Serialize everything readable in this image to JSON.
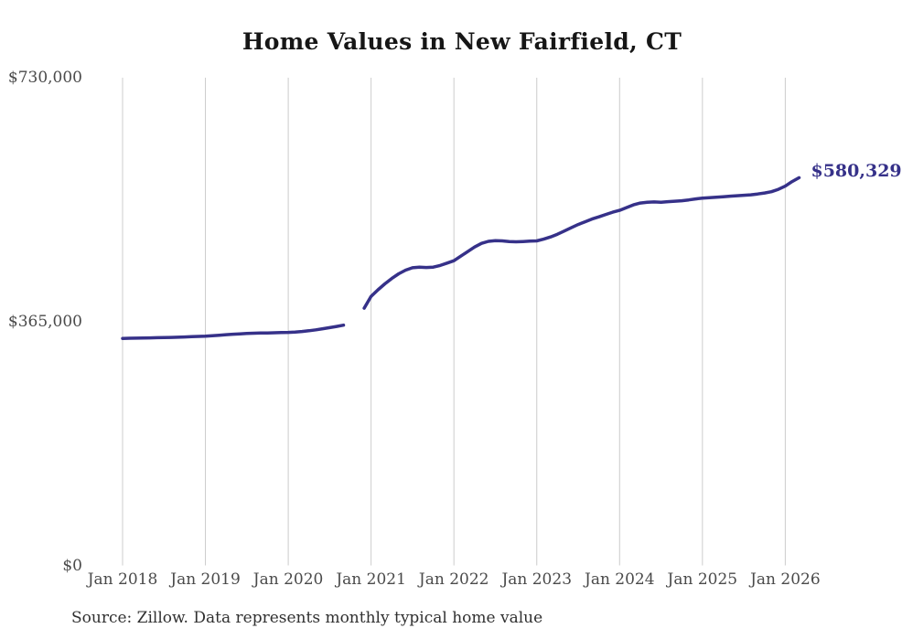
{
  "chart": {
    "title": "Home Values in New Fairfield, CT",
    "end_label": "$580,329",
    "source": "Source: Zillow. Data represents monthly typical home value",
    "line_color": "#363189",
    "grid_color": "#cccccc",
    "tick_color": "#4a4a4a"
  },
  "chart_data": {
    "type": "line",
    "title": "Home Values in New Fairfield, CT",
    "ylabel": "",
    "xlabel": "",
    "ylim": [
      0,
      730000
    ],
    "grid": "vertical-only",
    "legend": "none",
    "latest_value": 580329,
    "latest_value_label": "$580,329",
    "data_gap_months": [
      "2020-10",
      "2020-11"
    ],
    "source": "Source: Zillow. Data represents monthly typical home value",
    "y_ticks": [
      {
        "label": "$0",
        "value": 0
      },
      {
        "label": "$365,000",
        "value": 365000
      },
      {
        "label": "$730,000",
        "value": 730000
      }
    ],
    "x_ticks": [
      {
        "label": "Jan 2018",
        "month_index": 0
      },
      {
        "label": "Jan 2019",
        "month_index": 12
      },
      {
        "label": "Jan 2020",
        "month_index": 24
      },
      {
        "label": "Jan 2021",
        "month_index": 36
      },
      {
        "label": "Jan 2022",
        "month_index": 48
      },
      {
        "label": "Jan 2023",
        "month_index": 60
      },
      {
        "label": "Jan 2024",
        "month_index": 72
      },
      {
        "label": "Jan 2025",
        "month_index": 84
      },
      {
        "label": "Jan 2026",
        "month_index": 96
      }
    ],
    "x": [
      "2018-01",
      "2018-02",
      "2018-03",
      "2018-04",
      "2018-05",
      "2018-06",
      "2018-07",
      "2018-08",
      "2018-09",
      "2018-10",
      "2018-11",
      "2018-12",
      "2019-01",
      "2019-02",
      "2019-03",
      "2019-04",
      "2019-05",
      "2019-06",
      "2019-07",
      "2019-08",
      "2019-09",
      "2019-10",
      "2019-11",
      "2019-12",
      "2020-01",
      "2020-02",
      "2020-03",
      "2020-04",
      "2020-05",
      "2020-06",
      "2020-07",
      "2020-08",
      "2020-09",
      "2020-10",
      "2020-11",
      "2020-12",
      "2021-01",
      "2021-02",
      "2021-03",
      "2021-04",
      "2021-05",
      "2021-06",
      "2021-07",
      "2021-08",
      "2021-09",
      "2021-10",
      "2021-11",
      "2021-12",
      "2022-01",
      "2022-02",
      "2022-03",
      "2022-04",
      "2022-05",
      "2022-06",
      "2022-07",
      "2022-08",
      "2022-09",
      "2022-10",
      "2022-11",
      "2022-12",
      "2023-01",
      "2023-02",
      "2023-03",
      "2023-04",
      "2023-05",
      "2023-06",
      "2023-07",
      "2023-08",
      "2023-09",
      "2023-10",
      "2023-11",
      "2023-12",
      "2024-01",
      "2024-02",
      "2024-03",
      "2024-04",
      "2024-05",
      "2024-06",
      "2024-07",
      "2024-08",
      "2024-09",
      "2024-10",
      "2024-11",
      "2024-12",
      "2025-01",
      "2025-02",
      "2025-03",
      "2025-04",
      "2025-05",
      "2025-06",
      "2025-07",
      "2025-08",
      "2025-09",
      "2025-10",
      "2025-11",
      "2025-12",
      "2026-01",
      "2026-02",
      "2026-03"
    ],
    "values": [
      339700,
      340000,
      340200,
      340400,
      340600,
      340800,
      341000,
      341300,
      341600,
      342000,
      342400,
      342800,
      343200,
      343900,
      344600,
      345300,
      346000,
      346600,
      347100,
      347500,
      347800,
      348000,
      348200,
      348500,
      348800,
      349300,
      350100,
      351200,
      352600,
      354200,
      355900,
      357700,
      359600,
      null,
      null,
      385000,
      402500,
      412500,
      421500,
      429500,
      436500,
      442000,
      445500,
      446500,
      446000,
      446500,
      449000,
      452500,
      456100,
      462900,
      469800,
      476600,
      482100,
      485100,
      486200,
      485800,
      484800,
      484400,
      484800,
      485300,
      485800,
      488300,
      491700,
      495800,
      500600,
      505400,
      510200,
      514300,
      518400,
      521800,
      525300,
      528700,
      531400,
      535500,
      539600,
      542400,
      543700,
      544000,
      543700,
      544400,
      545100,
      545800,
      547100,
      548500,
      549600,
      550500,
      551200,
      551900,
      552600,
      553300,
      554000,
      554700,
      556000,
      557400,
      559400,
      562900,
      567700,
      574500,
      580329
    ]
  }
}
